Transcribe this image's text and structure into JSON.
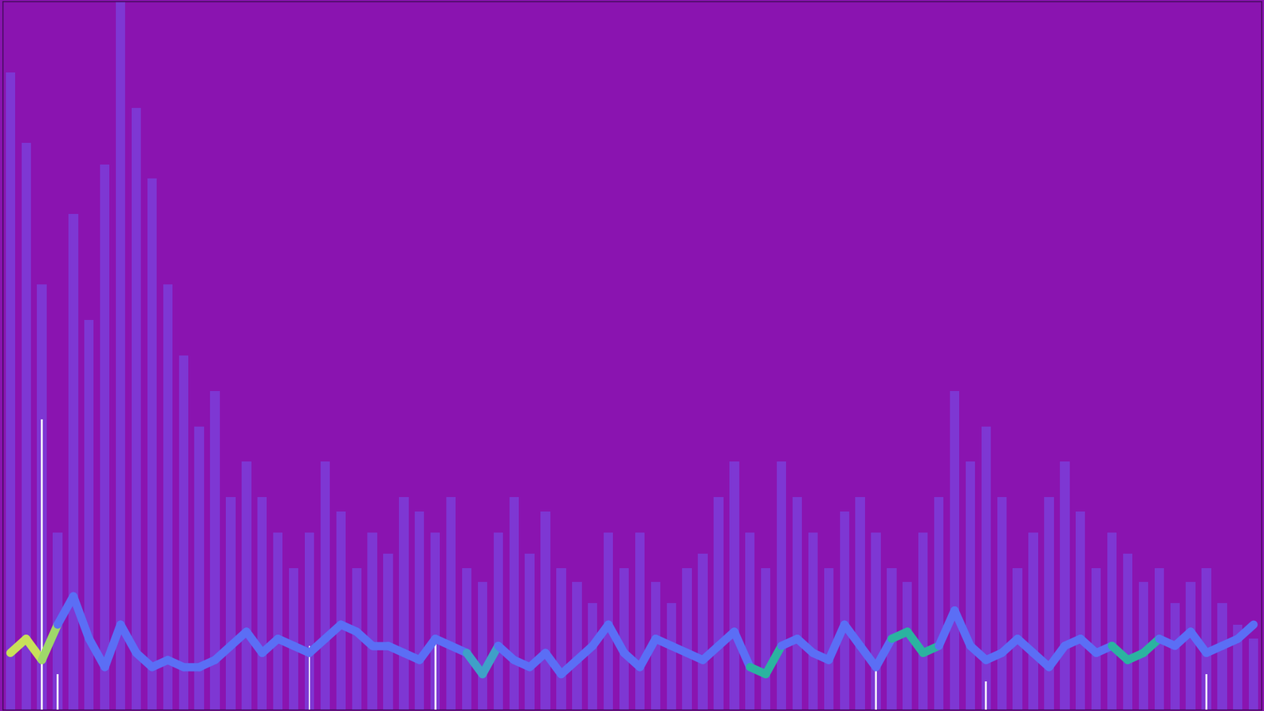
{
  "chart_data": {
    "type": "bar",
    "tick_labels": false,
    "grid": false,
    "xlim": [
      -0.5,
      79.5
    ],
    "ylim": [
      0,
      100
    ],
    "x": [
      0,
      1,
      2,
      3,
      4,
      5,
      6,
      7,
      8,
      9,
      10,
      11,
      12,
      13,
      14,
      15,
      16,
      17,
      18,
      19,
      20,
      21,
      22,
      23,
      24,
      25,
      26,
      27,
      28,
      29,
      30,
      31,
      32,
      33,
      34,
      35,
      36,
      37,
      38,
      39,
      40,
      41,
      42,
      43,
      44,
      45,
      46,
      47,
      48,
      49,
      50,
      51,
      52,
      53,
      54,
      55,
      56,
      57,
      58,
      59,
      60,
      61,
      62,
      63,
      64,
      65,
      66,
      67,
      68,
      69,
      70,
      71,
      72,
      73,
      74,
      75,
      76,
      77,
      78,
      79
    ],
    "series": [
      {
        "type": "bar",
        "color": "#7a44e0",
        "values": [
          90,
          80,
          60,
          25,
          70,
          55,
          77,
          100,
          85,
          75,
          60,
          50,
          40,
          45,
          30,
          35,
          30,
          25,
          20,
          25,
          35,
          28,
          20,
          25,
          22,
          30,
          28,
          25,
          30,
          20,
          18,
          25,
          30,
          22,
          28,
          20,
          18,
          15,
          25,
          20,
          25,
          18,
          15,
          20,
          22,
          30,
          35,
          25,
          20,
          35,
          30,
          25,
          20,
          28,
          30,
          25,
          20,
          18,
          25,
          30,
          45,
          35,
          40,
          30,
          20,
          25,
          30,
          35,
          28,
          20,
          25,
          22,
          18,
          20,
          15,
          18,
          20,
          15,
          12,
          10
        ]
      },
      {
        "type": "bar",
        "color": "#ffffff",
        "values": [
          0,
          0,
          41,
          5,
          0,
          0,
          0,
          0,
          0,
          0,
          0,
          0,
          0,
          0,
          0,
          0,
          0,
          0,
          0,
          9,
          0,
          0,
          0,
          0,
          0,
          0,
          0,
          10,
          0,
          0,
          0,
          0,
          0,
          0,
          0,
          0,
          0,
          0,
          0,
          0,
          0,
          0,
          0,
          0,
          0,
          0,
          0,
          0,
          0,
          0,
          0,
          0,
          0,
          0,
          0,
          6,
          0,
          0,
          0,
          0,
          0,
          0,
          4,
          0,
          0,
          0,
          0,
          0,
          0,
          0,
          0,
          0,
          0,
          0,
          0,
          0,
          5,
          0,
          0,
          0
        ]
      },
      {
        "type": "line",
        "values": [
          8,
          10,
          7,
          12,
          16,
          10,
          6,
          12,
          8,
          6,
          7,
          6,
          6,
          7,
          9,
          11,
          8,
          10,
          9,
          8,
          10,
          12,
          11,
          9,
          9,
          8,
          7,
          10,
          9,
          8,
          5,
          9,
          7,
          6,
          8,
          5,
          7,
          9,
          12,
          8,
          6,
          10,
          9,
          8,
          7,
          9,
          11,
          6,
          5,
          9,
          10,
          8,
          7,
          12,
          9,
          6,
          10,
          11,
          8,
          9,
          14,
          9,
          7,
          8,
          10,
          8,
          6,
          9,
          10,
          8,
          9,
          7,
          8,
          10,
          9,
          11,
          8,
          9,
          10,
          12
        ],
        "colors": [
          "#c8e05a",
          "#c8e05a",
          "#9fd86a",
          "#5b6ef5",
          "#5b6ef5",
          "#5b6ef5",
          "#5b6ef5",
          "#5b6ef5",
          "#5b6ef5",
          "#5b6ef5",
          "#5b6ef5",
          "#5b6ef5",
          "#5b6ef5",
          "#5b6ef5",
          "#5b6ef5",
          "#5b6ef5",
          "#5b6ef5",
          "#5b6ef5",
          "#5b6ef5",
          "#5b6ef5",
          "#5b6ef5",
          "#5b6ef5",
          "#5b6ef5",
          "#5b6ef5",
          "#5b6ef5",
          "#5b6ef5",
          "#5b6ef5",
          "#5b6ef5",
          "#5b6ef5",
          "#3fa0c8",
          "#3fa0c8",
          "#5b6ef5",
          "#5b6ef5",
          "#5b6ef5",
          "#5b6ef5",
          "#5b6ef5",
          "#5b6ef5",
          "#5b6ef5",
          "#5b6ef5",
          "#5b6ef5",
          "#5b6ef5",
          "#5b6ef5",
          "#5b6ef5",
          "#5b6ef5",
          "#5b6ef5",
          "#5b6ef5",
          "#5b6ef5",
          "#2bb3a0",
          "#2bb3a0",
          "#5b6ef5",
          "#5b6ef5",
          "#5b6ef5",
          "#5b6ef5",
          "#5b6ef5",
          "#5b6ef5",
          "#5b6ef5",
          "#2bb3a0",
          "#2bb3a0",
          "#2bb3a0",
          "#5b6ef5",
          "#5b6ef5",
          "#5b6ef5",
          "#5b6ef5",
          "#5b6ef5",
          "#5b6ef5",
          "#5b6ef5",
          "#5b6ef5",
          "#5b6ef5",
          "#5b6ef5",
          "#5b6ef5",
          "#2bb3a0",
          "#2bb3a0",
          "#2bb3a0",
          "#5b6ef5",
          "#5b6ef5",
          "#5b6ef5",
          "#5b6ef5",
          "#5b6ef5",
          "#5b6ef5",
          "#5b6ef5"
        ]
      }
    ]
  }
}
